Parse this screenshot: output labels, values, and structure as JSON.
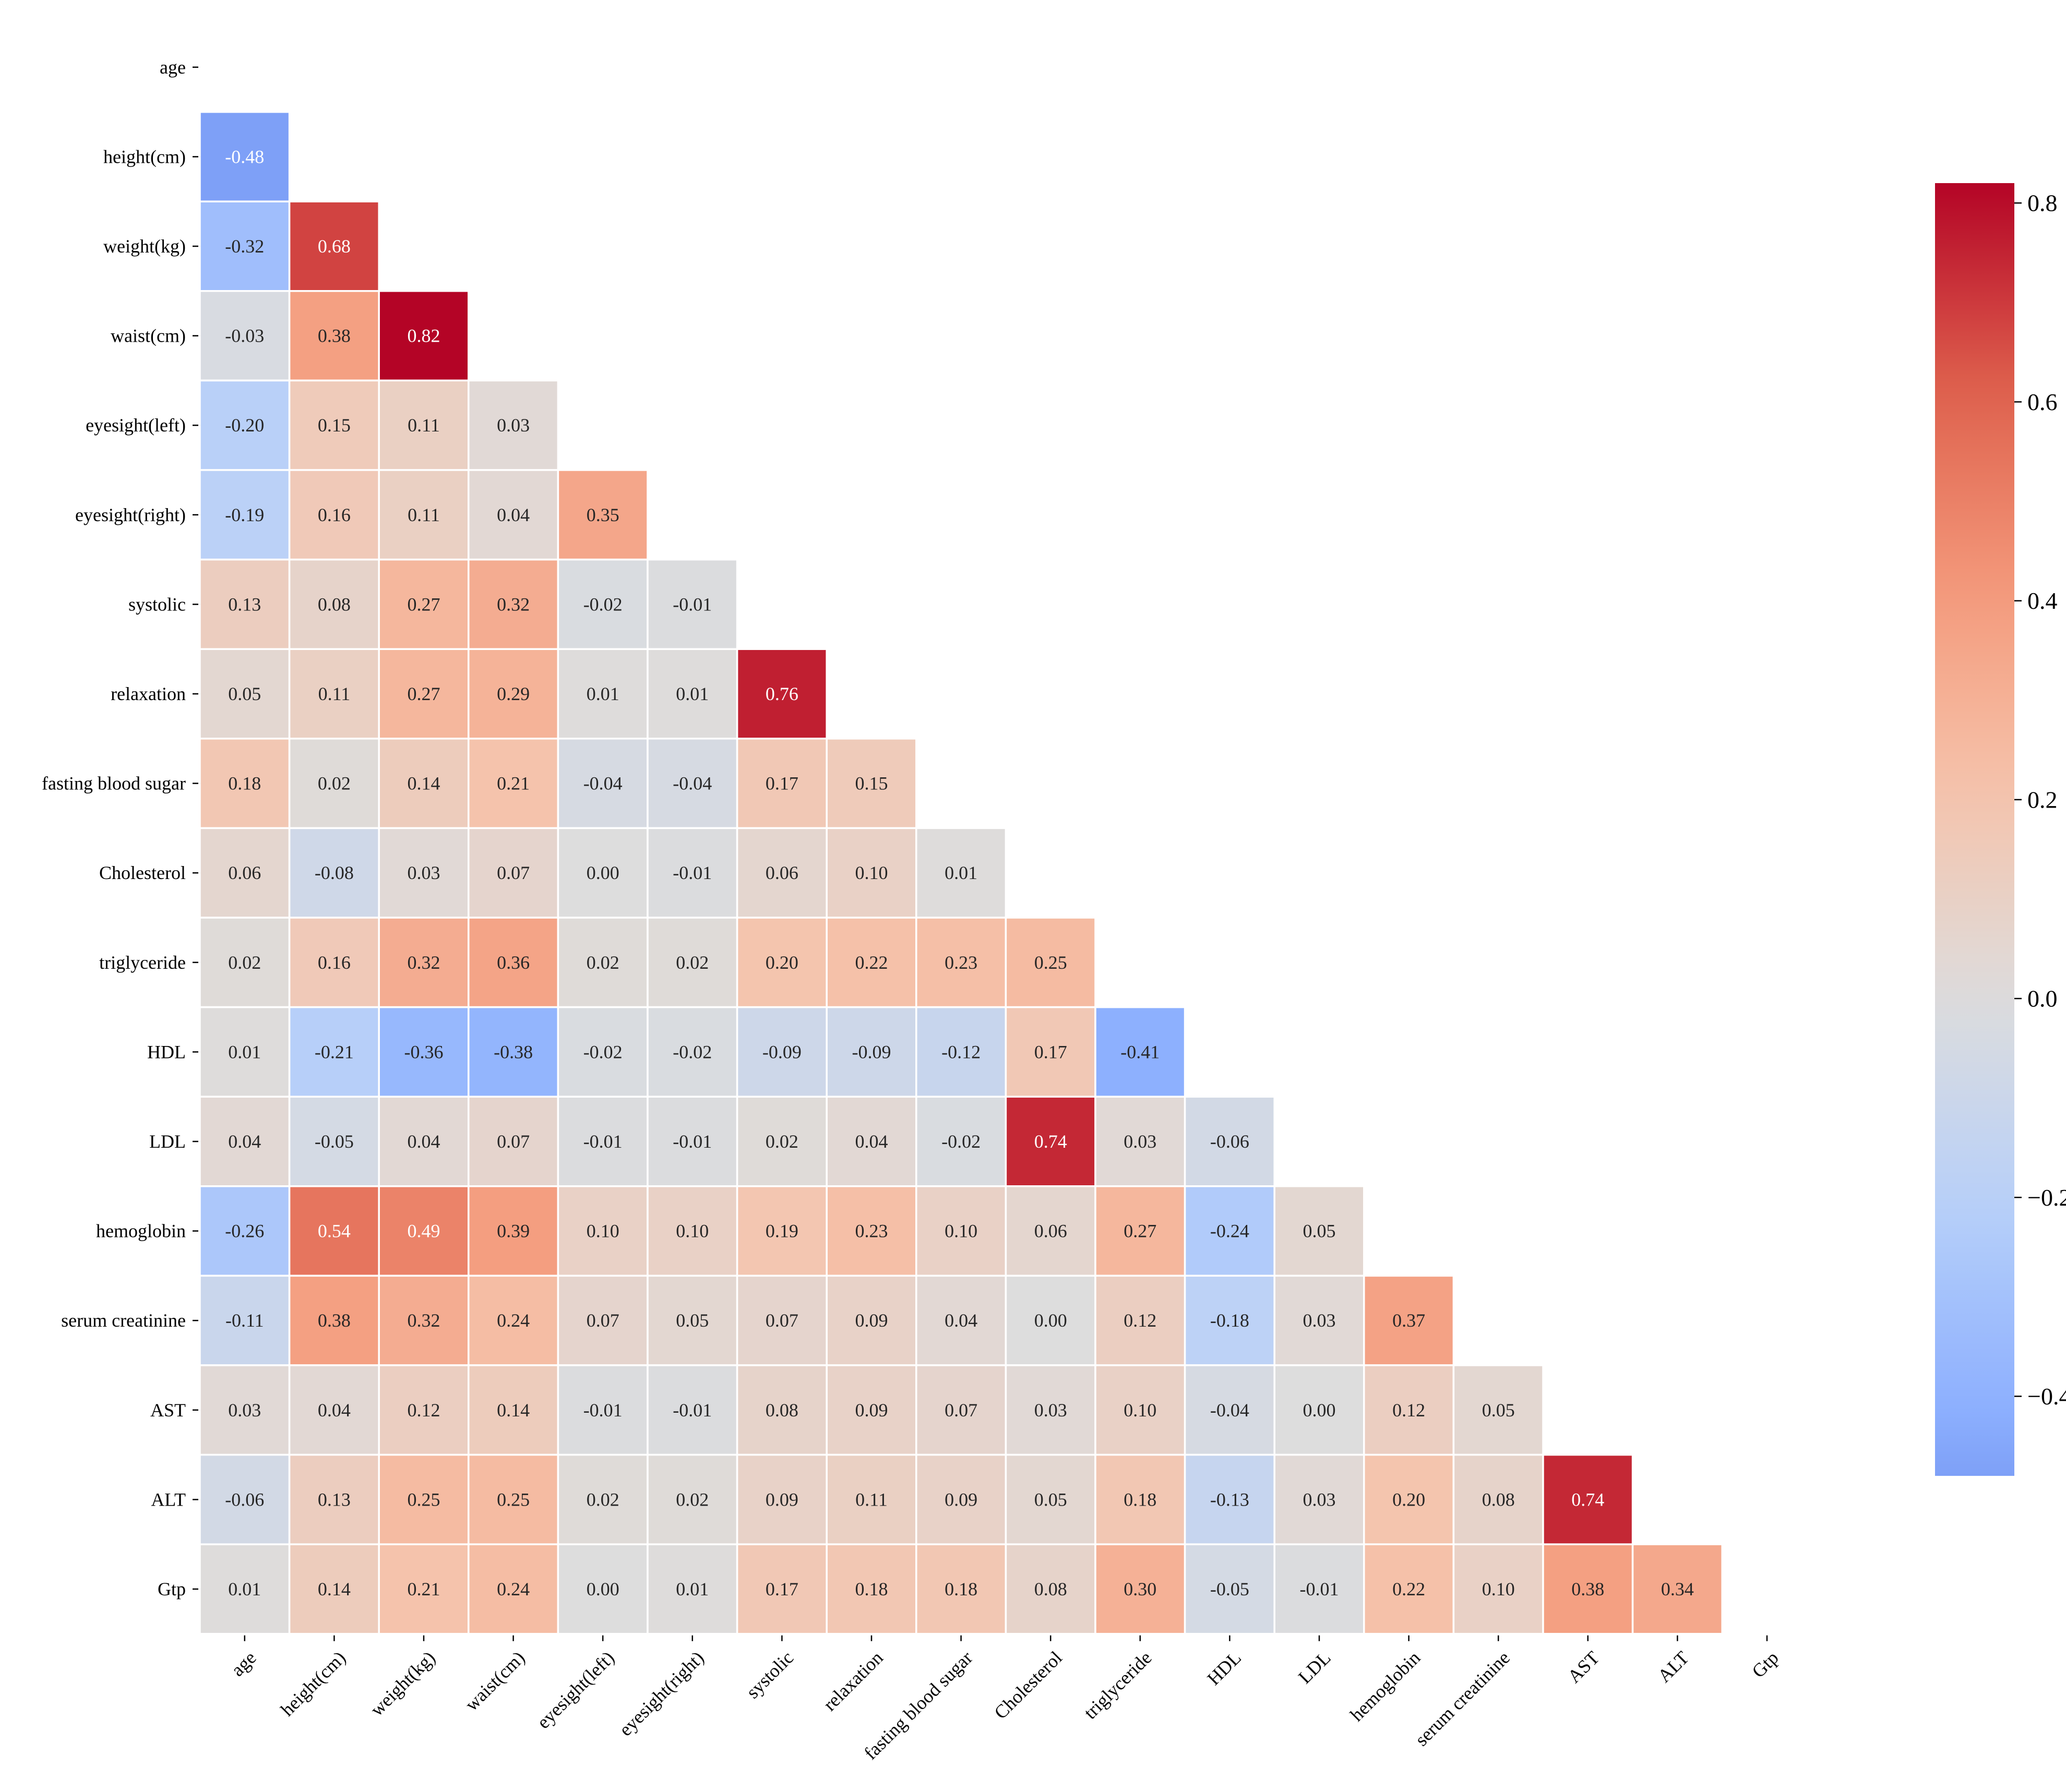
{
  "chart_data": {
    "type": "heatmap",
    "variant": "lower-triangle correlation matrix",
    "title": "",
    "xlabel": "",
    "ylabel": "",
    "colormap": "coolwarm",
    "vmin": -0.48,
    "vmax": 0.82,
    "center": 0,
    "variables": [
      "age",
      "height(cm)",
      "weight(kg)",
      "waist(cm)",
      "eyesight(left)",
      "eyesight(right)",
      "systolic",
      "relaxation",
      "fasting blood sugar",
      "Cholesterol",
      "triglyceride",
      "HDL",
      "LDL",
      "hemoglobin",
      "serum creatinine",
      "AST",
      "ALT",
      "Gtp"
    ],
    "matrix": [
      [],
      [
        -0.48
      ],
      [
        -0.32,
        0.68
      ],
      [
        -0.03,
        0.38,
        0.82
      ],
      [
        -0.2,
        0.15,
        0.11,
        0.03
      ],
      [
        -0.19,
        0.16,
        0.11,
        0.04,
        0.35
      ],
      [
        0.13,
        0.08,
        0.27,
        0.32,
        -0.02,
        -0.01
      ],
      [
        0.05,
        0.11,
        0.27,
        0.29,
        0.01,
        0.01,
        0.76
      ],
      [
        0.18,
        0.02,
        0.14,
        0.21,
        -0.04,
        -0.04,
        0.17,
        0.15
      ],
      [
        0.06,
        -0.08,
        0.03,
        0.07,
        -0.0,
        -0.01,
        0.06,
        0.1,
        0.01
      ],
      [
        0.02,
        0.16,
        0.32,
        0.36,
        0.02,
        0.02,
        0.2,
        0.22,
        0.23,
        0.25
      ],
      [
        0.01,
        -0.21,
        -0.36,
        -0.38,
        -0.02,
        -0.02,
        -0.09,
        -0.09,
        -0.12,
        0.17,
        -0.41
      ],
      [
        0.04,
        -0.05,
        0.04,
        0.07,
        -0.01,
        -0.01,
        0.02,
        0.04,
        -0.02,
        0.74,
        0.03,
        -0.06
      ],
      [
        -0.26,
        0.54,
        0.49,
        0.39,
        0.1,
        0.1,
        0.19,
        0.23,
        0.1,
        0.06,
        0.27,
        -0.24,
        0.05
      ],
      [
        -0.11,
        0.38,
        0.32,
        0.24,
        0.07,
        0.05,
        0.07,
        0.09,
        0.04,
        -0.0,
        0.12,
        -0.18,
        0.03,
        0.37
      ],
      [
        0.03,
        0.04,
        0.12,
        0.14,
        -0.01,
        -0.01,
        0.08,
        0.09,
        0.07,
        0.03,
        0.1,
        -0.04,
        0.0,
        0.12,
        0.05
      ],
      [
        -0.06,
        0.13,
        0.25,
        0.25,
        0.02,
        0.02,
        0.09,
        0.11,
        0.09,
        0.05,
        0.18,
        -0.13,
        0.03,
        0.2,
        0.08,
        0.74
      ],
      [
        0.01,
        0.14,
        0.21,
        0.24,
        0.0,
        0.01,
        0.17,
        0.18,
        0.18,
        0.08,
        0.3,
        -0.05,
        -0.01,
        0.22,
        0.1,
        0.38,
        0.34
      ]
    ],
    "colorbar": {
      "ticks": [
        -0.4,
        -0.2,
        0.0,
        0.2,
        0.4,
        0.6,
        0.8
      ],
      "tick_labels": [
        "−0.4",
        "−0.2",
        "0.0",
        "0.2",
        "0.4",
        "0.6",
        "0.8"
      ]
    }
  }
}
